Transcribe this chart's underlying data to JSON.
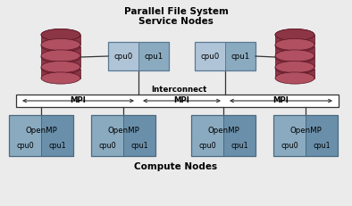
{
  "bg_color": "#ebebeb",
  "title_top": "Parallel File System",
  "title_top2": "Service Nodes",
  "title_bottom": "Compute Nodes",
  "interconnect_label": "Interconnect",
  "mpi_labels": [
    "MPI",
    "MPI",
    "MPI"
  ],
  "sn_box_color_left": "#b0c4d8",
  "sn_box_color_right": "#8aaabf",
  "sn_box_edge": "#5a7a95",
  "cn_box_color_left": "#8aaabf",
  "cn_box_color_right": "#6a8faa",
  "cn_box_edge": "#4a6a80",
  "disk_dark": "#8b3545",
  "disk_mid": "#b05060",
  "disk_light": "#c87080",
  "disk_edge": "#5a1525",
  "line_color": "#333333",
  "bar_fill": "#ffffff",
  "bar_edge": "#333333",
  "text_color": "#000000",
  "title_fontsize": 7.5,
  "label_fontsize": 6.2,
  "small_fontsize": 5.8
}
